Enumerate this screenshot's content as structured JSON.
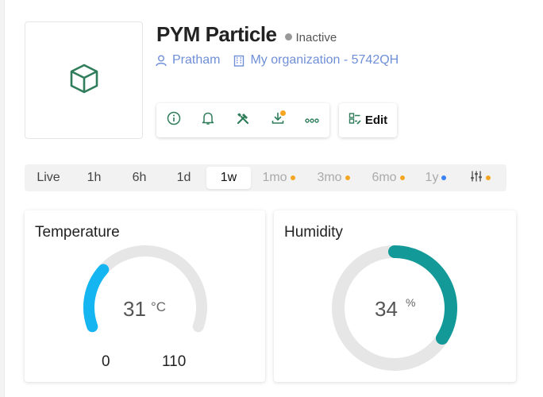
{
  "device": {
    "title": "PYM Particle",
    "status": "Inactive",
    "owner": "Pratham",
    "organization": "My organization - 5742QH",
    "image_icon": "cube-icon"
  },
  "actions": [
    {
      "name": "info-button",
      "icon": "info-icon"
    },
    {
      "name": "alerts-button",
      "icon": "bell-icon"
    },
    {
      "name": "tools-button",
      "icon": "tools-icon"
    },
    {
      "name": "download-button",
      "icon": "download-icon",
      "badge": true
    },
    {
      "name": "more-button",
      "icon": "more-icon"
    }
  ],
  "edit": {
    "label": "Edit",
    "icon": "edit-icon"
  },
  "time_ranges": [
    {
      "label": "Live",
      "state": "normal"
    },
    {
      "label": "1h",
      "state": "normal"
    },
    {
      "label": "6h",
      "state": "normal"
    },
    {
      "label": "1d",
      "state": "normal"
    },
    {
      "label": "1w",
      "state": "active"
    },
    {
      "label": "1mo",
      "state": "locked",
      "dot": "#f5a623"
    },
    {
      "label": "3mo",
      "state": "locked",
      "dot": "#f5a623"
    },
    {
      "label": "6mo",
      "state": "locked",
      "dot": "#f5a623"
    },
    {
      "label": "1y",
      "state": "locked",
      "dot": "#3b82f6"
    },
    {
      "label": "",
      "state": "locked",
      "icon": "sliders-icon",
      "dot": "#f5a623"
    }
  ],
  "widgets": {
    "temperature": {
      "title": "Temperature",
      "value": "31",
      "unit": "°C",
      "min": "0",
      "max": "110",
      "fraction": 0.2818,
      "color": "#14b5f0"
    },
    "humidity": {
      "title": "Humidity",
      "value": "34",
      "unit": "%",
      "fraction": 0.34,
      "color": "#139a98"
    }
  }
}
